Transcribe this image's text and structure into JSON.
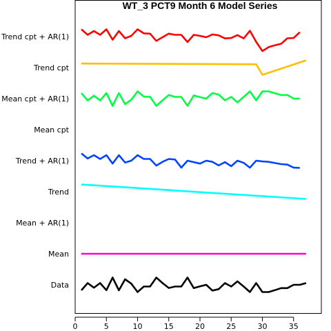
{
  "chart_data": {
    "type": "line",
    "title": "WT_3 PCT9 Month 6 Model Series",
    "xlabel": "",
    "ylabel": "",
    "xlim": [
      0,
      38
    ],
    "x_ticks": [
      0,
      5,
      10,
      15,
      20,
      25,
      30,
      35
    ],
    "rows": [
      "Data",
      "Mean",
      "Mean + AR(1)",
      "Trend",
      "Trend + AR(1)",
      "Mean cpt",
      "Mean cpt + AR(1)",
      "Trend cpt",
      "Trend cpt + AR(1)"
    ],
    "grid": false,
    "legend": "none",
    "series": [
      {
        "name": "Data",
        "color": "#000000",
        "row": 0,
        "x": [
          1,
          2,
          3,
          4,
          5,
          6,
          7,
          8,
          9,
          10,
          11,
          12,
          13,
          14,
          15,
          16,
          17,
          18,
          19,
          20,
          21,
          22,
          23,
          24,
          25,
          26,
          27,
          28,
          29,
          30,
          31,
          32,
          33,
          34,
          35,
          36,
          37
        ],
        "y": [
          -0.38,
          0.12,
          -0.2,
          0.12,
          -0.37,
          0.5,
          -0.38,
          0.38,
          0.08,
          -0.5,
          -0.12,
          -0.12,
          0.5,
          0.12,
          -0.22,
          -0.12,
          -0.12,
          0.5,
          -0.23,
          -0.11,
          0.0,
          -0.4,
          -0.3,
          0.12,
          -0.12,
          0.24,
          -0.12,
          -0.5,
          0.12,
          -0.5,
          -0.5,
          -0.37,
          -0.23,
          -0.23,
          0.0,
          0.0,
          0.12
        ]
      },
      {
        "name": "Mean",
        "color": "#ff00cc",
        "row": 1,
        "x": [
          1,
          37
        ],
        "y": [
          0.0,
          0.0
        ]
      },
      {
        "name": "Trend",
        "color": "#00ffff",
        "row": 3,
        "x": [
          1,
          37
        ],
        "y": [
          0.5,
          -0.5
        ]
      },
      {
        "name": "Trend + AR(1)",
        "color": "#0044ff",
        "row": 4,
        "x": [
          1,
          2,
          3,
          4,
          5,
          6,
          7,
          8,
          9,
          10,
          11,
          12,
          13,
          14,
          15,
          16,
          17,
          18,
          19,
          20,
          21,
          22,
          23,
          24,
          25,
          26,
          27,
          28,
          29,
          30,
          31,
          32,
          33,
          34,
          35,
          36,
          37
        ],
        "y": [
          0.5,
          0.15,
          0.38,
          0.12,
          0.38,
          -0.2,
          0.38,
          -0.13,
          0.0,
          0.38,
          0.12,
          0.12,
          -0.34,
          -0.08,
          0.12,
          0.08,
          -0.48,
          0.0,
          -0.1,
          -0.2,
          0.0,
          -0.08,
          -0.33,
          -0.1,
          -0.38,
          0.0,
          -0.15,
          -0.48,
          0.0,
          -0.05,
          -0.08,
          -0.16,
          -0.24,
          -0.27,
          -0.48,
          -0.5,
          null
        ]
      },
      {
        "name": "Mean cpt + AR(1)",
        "color": "#00ff44",
        "row": 6,
        "x": [
          1,
          2,
          3,
          4,
          5,
          6,
          7,
          8,
          9,
          10,
          11,
          12,
          13,
          14,
          15,
          16,
          17,
          18,
          19,
          20,
          21,
          22,
          23,
          24,
          25,
          26,
          27,
          28,
          29,
          30,
          31,
          32,
          33,
          34,
          35,
          36,
          37
        ],
        "y": [
          0.38,
          -0.13,
          0.2,
          -0.13,
          0.38,
          -0.5,
          0.38,
          -0.38,
          -0.08,
          0.5,
          0.14,
          0.12,
          -0.5,
          -0.12,
          0.25,
          0.12,
          0.12,
          -0.5,
          0.22,
          0.1,
          0.0,
          0.38,
          0.28,
          -0.12,
          0.12,
          -0.26,
          0.12,
          0.5,
          -0.12,
          0.5,
          0.5,
          0.37,
          0.25,
          0.25,
          0.0,
          0.0,
          null
        ]
      },
      {
        "name": "Trend cpt",
        "color": "#ffbf00",
        "row": 7,
        "x": [
          1,
          29,
          30,
          37
        ],
        "y": [
          0.28,
          0.23,
          -0.5,
          0.5
        ]
      },
      {
        "name": "Trend cpt + AR(1)",
        "color": "#ff0000",
        "row": 8,
        "x": [
          1,
          2,
          3,
          4,
          5,
          6,
          7,
          8,
          9,
          10,
          11,
          12,
          13,
          14,
          15,
          16,
          17,
          18,
          19,
          20,
          21,
          22,
          23,
          24,
          25,
          26,
          27,
          28,
          29,
          30,
          31,
          32,
          33,
          34,
          35,
          36,
          37
        ],
        "y": [
          0.5,
          0.12,
          0.38,
          0.12,
          0.5,
          -0.22,
          0.38,
          -0.12,
          0.05,
          0.5,
          0.22,
          0.2,
          -0.3,
          -0.05,
          0.2,
          0.12,
          0.12,
          -0.38,
          0.12,
          0.05,
          -0.05,
          0.15,
          0.08,
          -0.13,
          -0.1,
          0.1,
          -0.13,
          0.4,
          -0.37,
          -1.0,
          -0.73,
          -0.6,
          -0.5,
          -0.12,
          -0.1,
          0.3,
          null
        ]
      }
    ]
  }
}
